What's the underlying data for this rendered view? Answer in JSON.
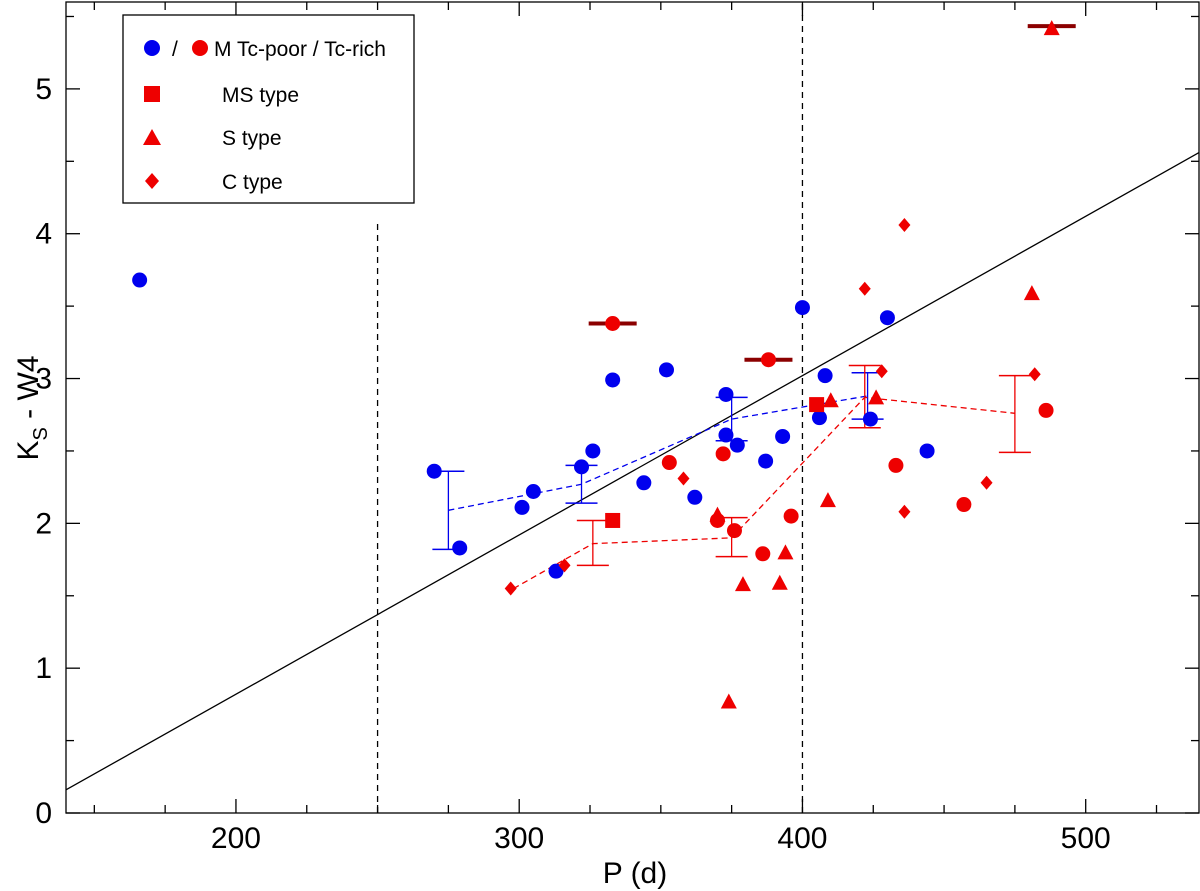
{
  "chart_data": {
    "type": "scatter",
    "title": "",
    "xlabel": "P (d)",
    "ylabel_main": "K",
    "ylabel_sub": "S",
    "ylabel_tail": " - W4",
    "xlim": [
      140,
      540
    ],
    "ylim": [
      0,
      5.6
    ],
    "xticks": [
      200,
      300,
      400,
      500
    ],
    "xtick_labels": [
      "200",
      "300",
      "400",
      "500"
    ],
    "yticks": [
      0,
      1,
      2,
      3,
      4,
      5
    ],
    "ytick_labels": [
      "0",
      "1",
      "2",
      "3",
      "4",
      "5"
    ],
    "legend": {
      "placement": "top-left",
      "entries": [
        {
          "label": "M Tc-poor / Tc-rich",
          "separator": "/",
          "markers": [
            "blue-circle",
            "red-circle"
          ]
        },
        {
          "label": "MS type",
          "markers": [
            "red-square"
          ]
        },
        {
          "label": "S type",
          "markers": [
            "red-triangle"
          ]
        },
        {
          "label": "C type",
          "markers": [
            "red-diamond"
          ]
        }
      ]
    },
    "colors": {
      "tc_poor": "#0000ee",
      "tc_rich": "#ee0000",
      "lower_limit": "#8b0000",
      "line": "#000000"
    },
    "reference_lines": {
      "vertical": [
        {
          "x": 250,
          "y_from": 0,
          "y_to": 4.1
        },
        {
          "x": 400,
          "y_from": 0,
          "y_to": 5.6
        }
      ],
      "fit_line": {
        "x": [
          140,
          540
        ],
        "y": [
          0.16,
          4.56
        ]
      }
    },
    "series": [
      {
        "name": "M Tc-poor",
        "marker": "circle",
        "color": "#0000ee",
        "points": [
          [
            166,
            3.68
          ],
          [
            270,
            2.36
          ],
          [
            279,
            1.83
          ],
          [
            301,
            2.11
          ],
          [
            305,
            2.22
          ],
          [
            313,
            1.67
          ],
          [
            322,
            2.39
          ],
          [
            326,
            2.5
          ],
          [
            333,
            2.99
          ],
          [
            344,
            2.28
          ],
          [
            352,
            3.06
          ],
          [
            362,
            2.18
          ],
          [
            373,
            2.89
          ],
          [
            373,
            2.61
          ],
          [
            377,
            2.54
          ],
          [
            387,
            2.43
          ],
          [
            393,
            2.6
          ],
          [
            400,
            3.49
          ],
          [
            406,
            2.73
          ],
          [
            408,
            3.02
          ],
          [
            424,
            2.72
          ],
          [
            430,
            3.42
          ],
          [
            444,
            2.5
          ]
        ]
      },
      {
        "name": "M Tc-rich",
        "marker": "circle",
        "color": "#ee0000",
        "points": [
          [
            353,
            2.42
          ],
          [
            370,
            2.02
          ],
          [
            372,
            2.48
          ],
          [
            376,
            1.95
          ],
          [
            386,
            1.79
          ],
          [
            396,
            2.05
          ],
          [
            433,
            2.4
          ],
          [
            457,
            2.13
          ],
          [
            486,
            2.78
          ]
        ]
      },
      {
        "name": "M Tc-rich lower limit",
        "marker": "circle-bar",
        "color": "#ee0000",
        "points": [
          [
            333,
            3.38
          ],
          [
            388,
            3.13
          ]
        ]
      },
      {
        "name": "MS type",
        "marker": "square",
        "color": "#ee0000",
        "points": [
          [
            333,
            2.02
          ],
          [
            405,
            2.82
          ]
        ]
      },
      {
        "name": "S type",
        "marker": "triangle",
        "color": "#ee0000",
        "points": [
          [
            370,
            2.06
          ],
          [
            374,
            0.77
          ],
          [
            379,
            1.58
          ],
          [
            392,
            1.59
          ],
          [
            394,
            1.8
          ],
          [
            409,
            2.16
          ],
          [
            410,
            2.85
          ],
          [
            426,
            2.87
          ],
          [
            481,
            3.59
          ]
        ]
      },
      {
        "name": "S type lower limit",
        "marker": "triangle-bar",
        "color": "#ee0000",
        "points": [
          [
            488,
            5.42
          ]
        ]
      },
      {
        "name": "C type",
        "marker": "diamond",
        "color": "#ee0000",
        "points": [
          [
            297,
            1.55
          ],
          [
            316,
            1.71
          ],
          [
            358,
            2.31
          ],
          [
            422,
            3.62
          ],
          [
            428,
            3.05
          ],
          [
            436,
            4.06
          ],
          [
            436,
            2.08
          ],
          [
            465,
            2.28
          ],
          [
            482,
            3.03
          ]
        ]
      }
    ],
    "binned": [
      {
        "name": "Tc-poor bin means",
        "color": "#0000ee",
        "x": [
          275,
          322,
          375,
          423
        ],
        "y": [
          2.09,
          2.27,
          2.72,
          2.88
        ],
        "err_low": [
          1.82,
          2.14,
          2.57,
          2.72
        ],
        "err_high": [
          2.36,
          2.4,
          2.87,
          3.04
        ]
      },
      {
        "name": "Tc-rich bin means",
        "color": "#ee0000",
        "x": [
          298,
          326,
          375,
          422,
          475
        ],
        "y": [
          1.55,
          1.86,
          1.9,
          2.87,
          2.76
        ],
        "err_low": [
          null,
          1.71,
          1.77,
          2.66,
          2.49
        ],
        "err_high": [
          null,
          2.02,
          2.04,
          3.09,
          3.02
        ]
      }
    ]
  }
}
